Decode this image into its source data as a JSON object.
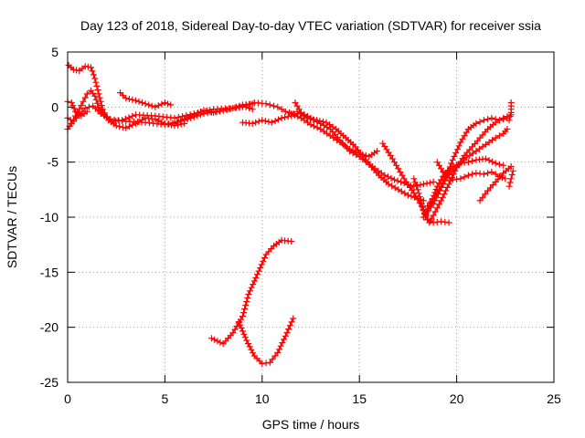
{
  "chart_data": {
    "type": "scatter",
    "title": "Day 123 of 2018, Sidereal Day-to-day VTEC variation (SDTVAR) for receiver ssia",
    "xlabel": "GPS time / hours",
    "ylabel": "SDTVAR / TECUs",
    "xlim": [
      0,
      25
    ],
    "ylim": [
      -25,
      5
    ],
    "xticks": [
      0,
      5,
      10,
      15,
      20,
      25
    ],
    "yticks": [
      5,
      0,
      -5,
      -10,
      -15,
      -20,
      -25
    ],
    "xtick_labels": [
      "0",
      "5",
      "10",
      "15",
      "20",
      "25"
    ],
    "ytick_labels": [
      "5",
      "0",
      "-5",
      "-10",
      "-15",
      "-20",
      "-25"
    ],
    "grid": true,
    "marker": "+",
    "color": "#ff0000",
    "series": [
      {
        "name": "s1",
        "points": [
          [
            0.05,
            3.8
          ],
          [
            0.3,
            3.4
          ],
          [
            0.6,
            3.3
          ],
          [
            0.9,
            3.7
          ],
          [
            1.2,
            3.6
          ],
          [
            1.4,
            2.6
          ],
          [
            1.6,
            1.2
          ],
          [
            1.8,
            -0.2
          ],
          [
            2.1,
            -1.2
          ],
          [
            2.5,
            -1.7
          ],
          [
            3.0,
            -1.9
          ],
          [
            3.5,
            -1.5
          ],
          [
            4.0,
            -1.0
          ],
          [
            4.5,
            -1.1
          ],
          [
            5.0,
            -1.5
          ],
          [
            5.5,
            -1.7
          ],
          [
            6.0,
            -1.5
          ]
        ]
      },
      {
        "name": "s2",
        "points": [
          [
            0.0,
            -2.0
          ],
          [
            0.2,
            -1.5
          ],
          [
            0.4,
            -0.8
          ],
          [
            0.6,
            -0.2
          ],
          [
            0.8,
            0.5
          ],
          [
            1.0,
            1.2
          ],
          [
            1.2,
            1.5
          ],
          [
            1.4,
            1.0
          ],
          [
            1.6,
            0.0
          ],
          [
            1.9,
            -0.8
          ],
          [
            2.3,
            -1.3
          ],
          [
            2.8,
            -1.2
          ],
          [
            3.5,
            -0.7
          ],
          [
            4.5,
            -0.8
          ],
          [
            5.5,
            -1.0
          ],
          [
            6.5,
            -0.6
          ],
          [
            7.5,
            -0.2
          ],
          [
            8.5,
            -0.1
          ],
          [
            9.0,
            0.0
          ],
          [
            9.6,
            0.4
          ],
          [
            10.2,
            0.3
          ],
          [
            10.8,
            0.0
          ],
          [
            11.2,
            -0.4
          ],
          [
            11.6,
            -0.6
          ]
        ]
      },
      {
        "name": "s3",
        "points": [
          [
            0.0,
            -1.0
          ],
          [
            0.3,
            -1.3
          ],
          [
            0.6,
            -0.7
          ],
          [
            0.9,
            -0.1
          ],
          [
            1.3,
            0.1
          ],
          [
            1.7,
            -0.6
          ],
          [
            2.2,
            -1.1
          ],
          [
            3.0,
            -1.3
          ],
          [
            4.0,
            -1.4
          ],
          [
            5.0,
            -1.6
          ],
          [
            6.0,
            -1.2
          ],
          [
            7.0,
            -0.6
          ],
          [
            8.0,
            -0.3
          ],
          [
            9.0,
            0.1
          ],
          [
            9.5,
            -0.2
          ]
        ]
      },
      {
        "name": "s4",
        "points": [
          [
            0.0,
            0.5
          ],
          [
            0.2,
            0.4
          ],
          [
            0.4,
            -0.4
          ],
          [
            0.7,
            -0.8
          ],
          [
            1.0,
            -0.4
          ]
        ]
      },
      {
        "name": "s5",
        "points": [
          [
            2.7,
            1.3
          ],
          [
            3.0,
            0.8
          ],
          [
            3.5,
            0.6
          ],
          [
            4.0,
            0.3
          ],
          [
            4.5,
            0.0
          ],
          [
            5.0,
            0.4
          ],
          [
            5.3,
            0.2
          ]
        ]
      },
      {
        "name": "s6",
        "points": [
          [
            5.5,
            -1.5
          ],
          [
            6.0,
            -1.1
          ],
          [
            6.5,
            -0.7
          ],
          [
            7.0,
            -0.3
          ],
          [
            7.5,
            -0.5
          ],
          [
            8.0,
            -0.3
          ],
          [
            8.5,
            -0.1
          ],
          [
            9.0,
            0.2
          ],
          [
            9.5,
            0.3
          ]
        ]
      },
      {
        "name": "s7",
        "points": [
          [
            9.0,
            -1.4
          ],
          [
            9.5,
            -1.5
          ],
          [
            10.0,
            -1.2
          ],
          [
            10.5,
            -1.4
          ],
          [
            11.0,
            -1.0
          ],
          [
            11.5,
            -0.8
          ],
          [
            11.8,
            -0.6
          ]
        ]
      },
      {
        "name": "s8",
        "points": [
          [
            11.7,
            0.4
          ],
          [
            12.0,
            -0.5
          ],
          [
            12.5,
            -1.0
          ],
          [
            13.0,
            -1.5
          ],
          [
            13.5,
            -2.0
          ],
          [
            14.0,
            -3.0
          ],
          [
            14.5,
            -4.0
          ],
          [
            15.0,
            -4.5
          ],
          [
            15.5,
            -5.2
          ],
          [
            16.0,
            -6.2
          ],
          [
            16.5,
            -7.0
          ],
          [
            17.0,
            -7.5
          ],
          [
            17.5,
            -8.0
          ],
          [
            18.0,
            -8.3
          ],
          [
            18.3,
            -8.5
          ]
        ]
      },
      {
        "name": "s9",
        "points": [
          [
            11.5,
            -0.6
          ],
          [
            12.0,
            -1.0
          ],
          [
            12.5,
            -1.6
          ],
          [
            13.0,
            -2.0
          ],
          [
            13.5,
            -2.6
          ],
          [
            14.0,
            -3.2
          ],
          [
            14.5,
            -3.8
          ],
          [
            15.0,
            -4.2
          ],
          [
            15.5,
            -4.5
          ],
          [
            15.9,
            -4.0
          ]
        ]
      },
      {
        "name": "s10",
        "points": [
          [
            11.8,
            -0.4
          ],
          [
            12.3,
            -1.0
          ],
          [
            12.8,
            -1.2
          ],
          [
            13.3,
            -1.4
          ],
          [
            13.8,
            -2.0
          ],
          [
            14.3,
            -2.8
          ],
          [
            14.8,
            -3.6
          ],
          [
            15.3,
            -4.8
          ],
          [
            15.8,
            -5.6
          ],
          [
            16.3,
            -6.2
          ],
          [
            16.8,
            -6.6
          ],
          [
            17.3,
            -6.9
          ],
          [
            17.8,
            -7.2
          ],
          [
            18.3,
            -7.0
          ],
          [
            18.8,
            -6.8
          ]
        ]
      },
      {
        "name": "s11",
        "points": [
          [
            16.2,
            -3.3
          ],
          [
            16.6,
            -4.4
          ],
          [
            17.0,
            -5.6
          ],
          [
            17.4,
            -6.8
          ],
          [
            17.8,
            -7.8
          ],
          [
            18.2,
            -9.0
          ],
          [
            18.5,
            -10.2
          ],
          [
            18.8,
            -10.5
          ],
          [
            19.2,
            -10.4
          ],
          [
            19.6,
            -10.5
          ]
        ]
      },
      {
        "name": "s12",
        "points": [
          [
            17.8,
            -6.5
          ],
          [
            18.0,
            -7.5
          ],
          [
            18.2,
            -8.8
          ],
          [
            18.4,
            -10.0
          ],
          [
            18.6,
            -10.5
          ],
          [
            18.9,
            -9.5
          ],
          [
            19.2,
            -8.5
          ],
          [
            19.6,
            -7.0
          ],
          [
            20.0,
            -5.5
          ],
          [
            20.4,
            -4.4
          ],
          [
            20.8,
            -3.6
          ],
          [
            21.2,
            -2.8
          ],
          [
            21.6,
            -2.0
          ],
          [
            22.0,
            -1.4
          ],
          [
            22.4,
            -1.0
          ],
          [
            22.8,
            -0.7
          ]
        ]
      },
      {
        "name": "s13",
        "points": [
          [
            18.4,
            -9.8
          ],
          [
            18.7,
            -8.6
          ],
          [
            19.0,
            -7.2
          ],
          [
            19.4,
            -6.0
          ],
          [
            19.8,
            -5.4
          ],
          [
            20.2,
            -5.1
          ],
          [
            20.6,
            -5.0
          ],
          [
            21.0,
            -4.8
          ],
          [
            21.5,
            -4.7
          ],
          [
            22.0,
            -5.1
          ],
          [
            22.4,
            -5.3
          ]
        ]
      },
      {
        "name": "s14",
        "points": [
          [
            18.3,
            -10.0
          ],
          [
            18.8,
            -8.8
          ],
          [
            19.3,
            -7.0
          ],
          [
            19.8,
            -4.8
          ],
          [
            20.2,
            -3.2
          ],
          [
            20.6,
            -2.0
          ],
          [
            21.0,
            -1.5
          ],
          [
            21.4,
            -1.2
          ],
          [
            21.8,
            -1.0
          ],
          [
            22.2,
            -1.2
          ],
          [
            22.6,
            -1.0
          ]
        ]
      },
      {
        "name": "s15",
        "points": [
          [
            18.5,
            -9.0
          ],
          [
            19.0,
            -7.8
          ],
          [
            19.5,
            -6.4
          ],
          [
            20.0,
            -5.4
          ],
          [
            20.5,
            -4.6
          ],
          [
            21.0,
            -4.0
          ],
          [
            21.5,
            -3.4
          ],
          [
            22.0,
            -2.8
          ],
          [
            22.4,
            -2.4
          ],
          [
            22.6,
            -2.0
          ]
        ]
      },
      {
        "name": "s16",
        "points": [
          [
            19.0,
            -5.0
          ],
          [
            19.4,
            -6.2
          ],
          [
            19.8,
            -6.6
          ],
          [
            20.2,
            -6.5
          ],
          [
            20.6,
            -6.2
          ],
          [
            21.0,
            -6.0
          ],
          [
            21.4,
            -6.1
          ],
          [
            21.8,
            -5.9
          ],
          [
            22.2,
            -6.3
          ],
          [
            22.5,
            -6.5
          ]
        ]
      },
      {
        "name": "s17",
        "points": [
          [
            21.2,
            -8.5
          ],
          [
            21.6,
            -7.6
          ],
          [
            22.0,
            -6.8
          ],
          [
            22.4,
            -6.0
          ],
          [
            22.8,
            -5.4
          ]
        ]
      },
      {
        "name": "s18",
        "points": [
          [
            22.7,
            -1.2
          ],
          [
            22.8,
            -0.5
          ],
          [
            22.8,
            0.4
          ]
        ]
      },
      {
        "name": "s19",
        "points": [
          [
            22.7,
            -7.2
          ],
          [
            22.8,
            -6.5
          ],
          [
            22.9,
            -5.8
          ]
        ]
      },
      {
        "name": "s20",
        "points": [
          [
            7.4,
            -21.0
          ],
          [
            8.0,
            -21.5
          ],
          [
            8.5,
            -20.5
          ],
          [
            9.0,
            -19.0
          ],
          [
            9.3,
            -17.0
          ],
          [
            9.6,
            -15.8
          ],
          [
            9.9,
            -14.6
          ],
          [
            10.2,
            -13.4
          ],
          [
            10.6,
            -12.6
          ],
          [
            11.0,
            -12.1
          ],
          [
            11.5,
            -12.2
          ]
        ]
      },
      {
        "name": "s21",
        "points": [
          [
            8.8,
            -19.5
          ],
          [
            9.2,
            -21.2
          ],
          [
            9.6,
            -22.6
          ],
          [
            10.0,
            -23.3
          ],
          [
            10.4,
            -23.2
          ],
          [
            10.8,
            -22.3
          ],
          [
            11.2,
            -20.8
          ],
          [
            11.6,
            -19.2
          ]
        ]
      }
    ]
  }
}
